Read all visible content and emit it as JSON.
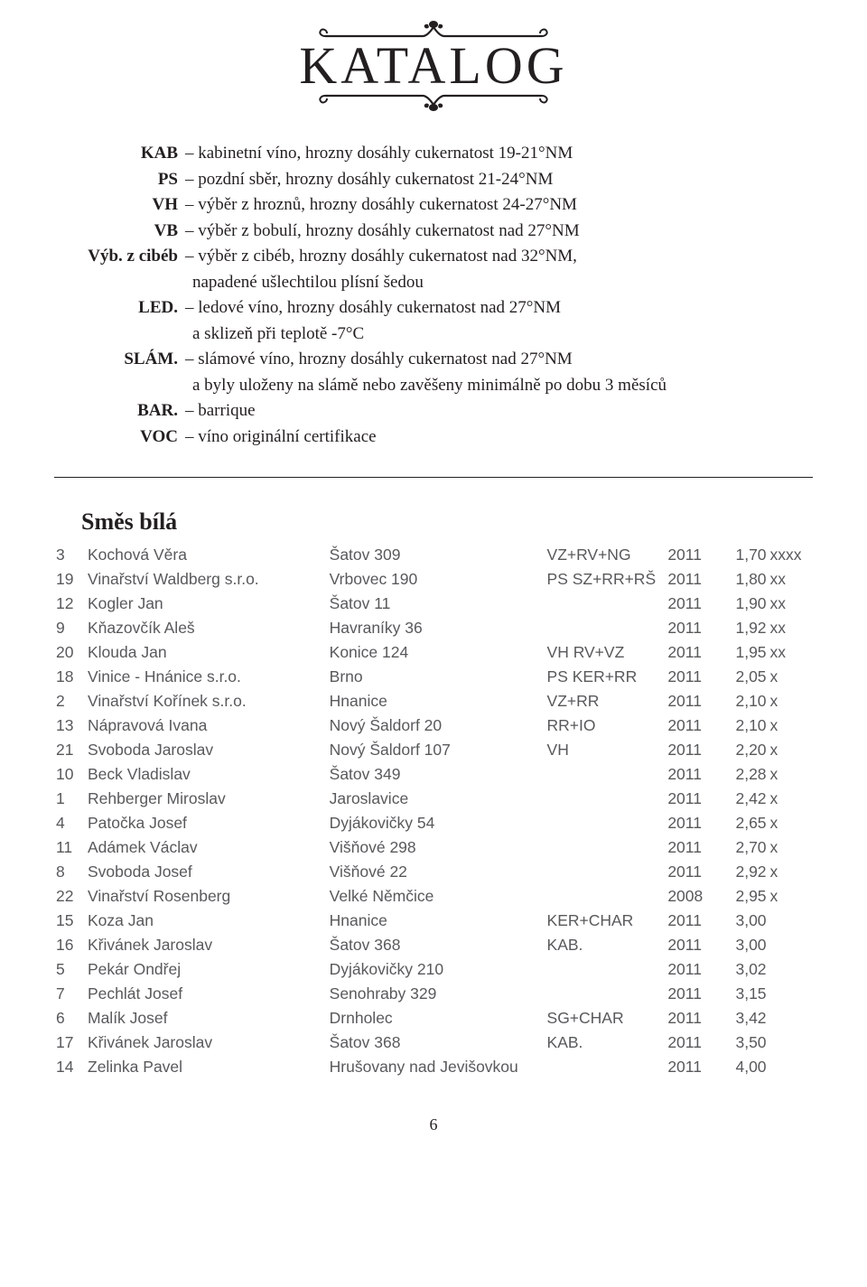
{
  "title": "KATALOG",
  "definitions": [
    {
      "abbr": "KAB",
      "text": "– kabinetní víno, hrozny dosáhly cukernatost 19-21°NM"
    },
    {
      "abbr": "PS",
      "text": "– pozdní sběr, hrozny dosáhly cukernatost 21-24°NM"
    },
    {
      "abbr": "VH",
      "text": "– výběr z hroznů, hrozny dosáhly cukernatost 24-27°NM"
    },
    {
      "abbr": "VB",
      "text": "– výběr z bobulí, hrozny dosáhly cukernatost nad 27°NM"
    },
    {
      "abbr": "Výb. z cibéb",
      "text": "– výběr z cibéb, hrozny dosáhly cukernatost nad 32°NM,"
    },
    {
      "abbr": "",
      "text": "napadené ušlechtilou plísní šedou"
    },
    {
      "abbr": "LED.",
      "text": "– ledové víno, hrozny dosáhly cukernatost nad 27°NM"
    },
    {
      "abbr": "",
      "text": "a sklizeň při teplotě -7°C"
    },
    {
      "abbr": "SLÁM.",
      "text": "– slámové víno, hrozny dosáhly cukernatost nad 27°NM"
    },
    {
      "abbr": "",
      "text": "a byly uloženy na slámě nebo zavěšeny minimálně po dobu 3 měsíců"
    },
    {
      "abbr": "BAR.",
      "text": "– barrique"
    },
    {
      "abbr": "VOC",
      "text": "– víno originální certifikace"
    }
  ],
  "section": "Směs bílá",
  "rows": [
    {
      "n": "3",
      "name": "Kochová Věra",
      "loc": "Šatov 309",
      "type": "VZ+RV+NG",
      "year": "2011",
      "score": "1,70",
      "mark": "xxxx"
    },
    {
      "n": "19",
      "name": "Vinařství Waldberg s.r.o.",
      "loc": "Vrbovec 190",
      "type": "PS SZ+RR+RŠ",
      "year": "2011",
      "score": "1,80",
      "mark": "xx"
    },
    {
      "n": "12",
      "name": "Kogler Jan",
      "loc": "Šatov 11",
      "type": "",
      "year": "2011",
      "score": "1,90",
      "mark": "xx"
    },
    {
      "n": "9",
      "name": "Kňazovčík Aleš",
      "loc": "Havraníky 36",
      "type": "",
      "year": "2011",
      "score": "1,92",
      "mark": "xx"
    },
    {
      "n": "20",
      "name": "Klouda Jan",
      "loc": "Konice 124",
      "type": "VH RV+VZ",
      "year": "2011",
      "score": "1,95",
      "mark": "xx"
    },
    {
      "n": "18",
      "name": "Vinice - Hnánice s.r.o.",
      "loc": "Brno",
      "type": "PS KER+RR",
      "year": "2011",
      "score": "2,05",
      "mark": "x"
    },
    {
      "n": "2",
      "name": "Vinařství Kořínek s.r.o.",
      "loc": "Hnanice",
      "type": "VZ+RR",
      "year": "2011",
      "score": "2,10",
      "mark": "x"
    },
    {
      "n": "13",
      "name": "Nápravová Ivana",
      "loc": "Nový Šaldorf 20",
      "type": "RR+IO",
      "year": "2011",
      "score": "2,10",
      "mark": "x"
    },
    {
      "n": "21",
      "name": "Svoboda Jaroslav",
      "loc": "Nový Šaldorf 107",
      "type": "VH",
      "year": "2011",
      "score": "2,20",
      "mark": "x"
    },
    {
      "n": "10",
      "name": "Beck Vladislav",
      "loc": "Šatov 349",
      "type": "",
      "year": "2011",
      "score": "2,28",
      "mark": "x"
    },
    {
      "n": "1",
      "name": "Rehberger Miroslav",
      "loc": "Jaroslavice",
      "type": "",
      "year": "2011",
      "score": "2,42",
      "mark": "x"
    },
    {
      "n": "4",
      "name": "Patočka Josef",
      "loc": "Dyjákovičky 54",
      "type": "",
      "year": "2011",
      "score": "2,65",
      "mark": "x"
    },
    {
      "n": "11",
      "name": "Adámek Václav",
      "loc": "Višňové 298",
      "type": "",
      "year": "2011",
      "score": "2,70",
      "mark": "x"
    },
    {
      "n": "8",
      "name": "Svoboda Josef",
      "loc": "Višňové 22",
      "type": "",
      "year": "2011",
      "score": "2,92",
      "mark": "x"
    },
    {
      "n": "22",
      "name": "Vinařství Rosenberg",
      "loc": "Velké Němčice",
      "type": "",
      "year": "2008",
      "score": "2,95",
      "mark": "x"
    },
    {
      "n": "15",
      "name": "Koza Jan",
      "loc": "Hnanice",
      "type": "KER+CHAR",
      "year": "2011",
      "score": "3,00",
      "mark": ""
    },
    {
      "n": "16",
      "name": "Křivánek Jaroslav",
      "loc": "Šatov 368",
      "type": "KAB.",
      "year": "2011",
      "score": "3,00",
      "mark": ""
    },
    {
      "n": "5",
      "name": "Pekár Ondřej",
      "loc": "Dyjákovičky 210",
      "type": "",
      "year": "2011",
      "score": "3,02",
      "mark": ""
    },
    {
      "n": "7",
      "name": "Pechlát Josef",
      "loc": "Senohraby 329",
      "type": "",
      "year": "2011",
      "score": "3,15",
      "mark": ""
    },
    {
      "n": "6",
      "name": "Malík Josef",
      "loc": "Drnholec",
      "type": "SG+CHAR",
      "year": "2011",
      "score": "3,42",
      "mark": ""
    },
    {
      "n": "17",
      "name": "Křivánek Jaroslav",
      "loc": "Šatov 368",
      "type": "KAB.",
      "year": "2011",
      "score": "3,50",
      "mark": ""
    },
    {
      "n": "14",
      "name": "Zelinka Pavel",
      "loc": "Hrušovany nad Jevišovkou",
      "type": "",
      "year": "2011",
      "score": "4,00",
      "mark": ""
    }
  ],
  "pageNumber": "6",
  "colors": {
    "textMain": "#231f20",
    "textTable": "#58595b",
    "background": "#ffffff"
  },
  "fonts": {
    "body": "Georgia, 'Times New Roman', serif",
    "table": "'Myriad Pro', Arial, sans-serif",
    "title": "'Trajan Pro', 'Palatino Linotype', Georgia, serif"
  }
}
